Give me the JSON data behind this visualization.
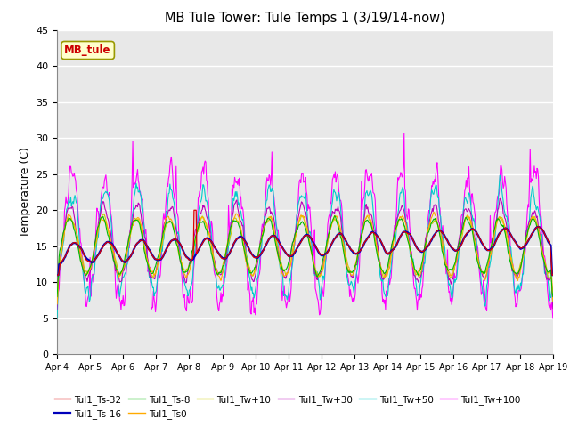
{
  "title": "MB Tule Tower: Tule Temps 1 (3/19/14-now)",
  "ylabel": "Temperature (C)",
  "ylim": [
    0,
    45
  ],
  "yticks": [
    0,
    5,
    10,
    15,
    20,
    25,
    30,
    35,
    40,
    45
  ],
  "x_tick_labels": [
    "Apr 4",
    "Apr 5",
    "Apr 6",
    "Apr 7",
    "Apr 8",
    "Apr 9",
    "Apr 10",
    "Apr 11",
    "Apr 12",
    "Apr 13",
    "Apr 14",
    "Apr 15",
    "Apr 16",
    "Apr 17",
    "Apr 18",
    "Apr 19"
  ],
  "legend_row1": [
    "Tul1_Ts-32",
    "Tul1_Ts-16",
    "Tul1_Ts-8",
    "Tul1_Ts0",
    "Tul1_Tw+10",
    "Tul1_Tw+30"
  ],
  "legend_row2": [
    "Tul1_Tw+50",
    "Tul1_Tw+100"
  ],
  "colors": {
    "Ts32": "#dd0000",
    "Ts16": "#0000bb",
    "Ts8": "#00bb00",
    "Ts0": "#ffaa00",
    "Tw10": "#cccc00",
    "Tw30": "#bb00bb",
    "Tw50": "#00cccc",
    "Tw100": "#ff00ff"
  },
  "fig_bg": "#ffffff",
  "plot_bg": "#e8e8e8",
  "grid_color": "#ffffff",
  "annotation_text": "MB_tule",
  "annotation_fg": "#cc0000",
  "annotation_bg": "#ffffcc",
  "annotation_border": "#999900"
}
